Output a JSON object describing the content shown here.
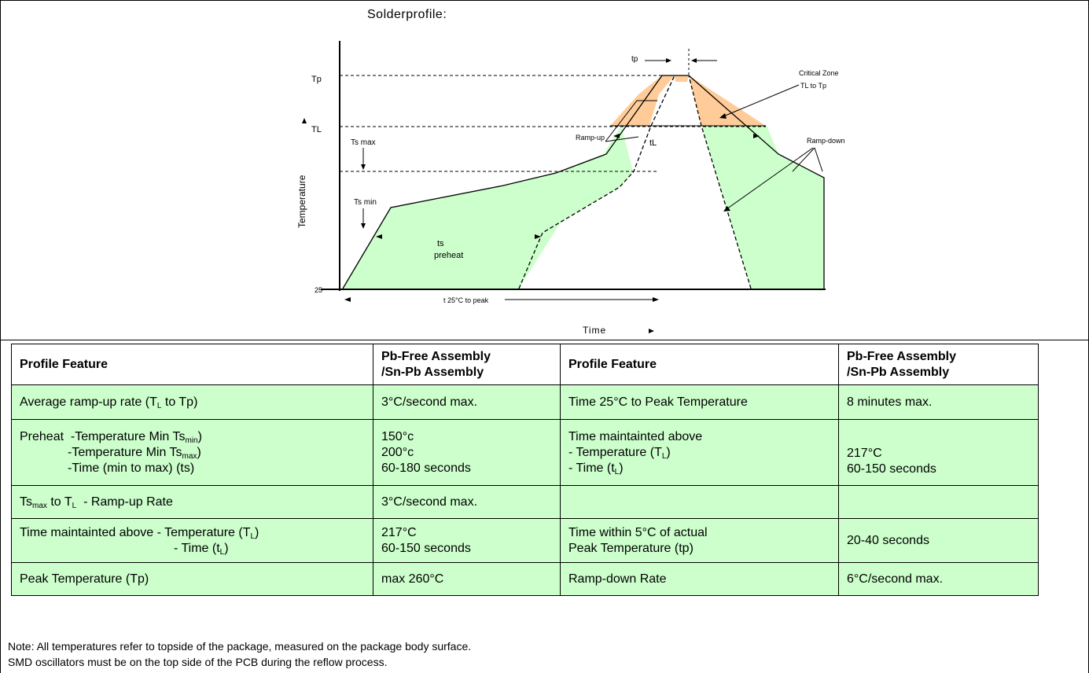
{
  "diagram": {
    "title": "Solderprofile:",
    "y_axis_label": "Temperature",
    "x_axis_label": "Time",
    "labels": {
      "tp_arrow": "tp",
      "Tp": "Tp",
      "TL": "TL",
      "ts_max": "Ts max",
      "ts_min": "Ts min",
      "ts": "ts",
      "preheat": "preheat",
      "tL": "tL",
      "ramp_up": "Ramp-up",
      "ramp_down": "Ramp-down",
      "critical_zone": "Critical Zone",
      "critical_zone_range": "TL to Tp",
      "origin": "25",
      "to_peak": "t 25°C to peak"
    },
    "colors": {
      "preheat_fill": "#ccffcc",
      "critical_fill": "#ffcc99"
    }
  },
  "table": {
    "headers": [
      "Profile Feature",
      "Pb-Free Assembly\n/Sn-Pb Assembly",
      "Profile Feature",
      "Pb-Free Assembly\n/Sn-Pb Assembly"
    ],
    "rows": [
      {
        "c1": "Average ramp-up rate (TL to Tp)",
        "c2": "3°C/second max.",
        "c3": "Time 25°C to Peak Temperature",
        "c4": "8 minutes max."
      },
      {
        "c1_l1": "Preheat  -Temperature Min Tsmin)",
        "c1_l2": "-Temperature Min Tsmax)",
        "c1_l3": "-Time (min to max) (ts)",
        "c2": "150°c\n200°c\n60-180 seconds",
        "c3": "Time maintainted above\n- Temperature (TL)\n- Time (tL)",
        "c4": "217°C\n60-150 seconds"
      },
      {
        "c1": "Tsmax to TL  - Ramp-up Rate",
        "c2": "3°C/second max.",
        "c3": "",
        "c4": ""
      },
      {
        "c1_l1": "Time maintainted above - Temperature (TL)",
        "c1_l2": "- Time (tL)",
        "c2": "217°C\n60-150 seconds",
        "c3": "Time within 5°C of actual\nPeak Temperature (tp)",
        "c4": "20-40 seconds"
      },
      {
        "c1": "Peak Temperature (Tp)",
        "c2": "max 260°C",
        "c3": "Ramp-down Rate",
        "c4": "6°C/second max."
      }
    ]
  },
  "notes": [
    "Note: All temperatures refer to topside of the  package, measured on the package body surface.",
    "SMD oscillators must be on the top side of the PCB during the reflow process."
  ]
}
